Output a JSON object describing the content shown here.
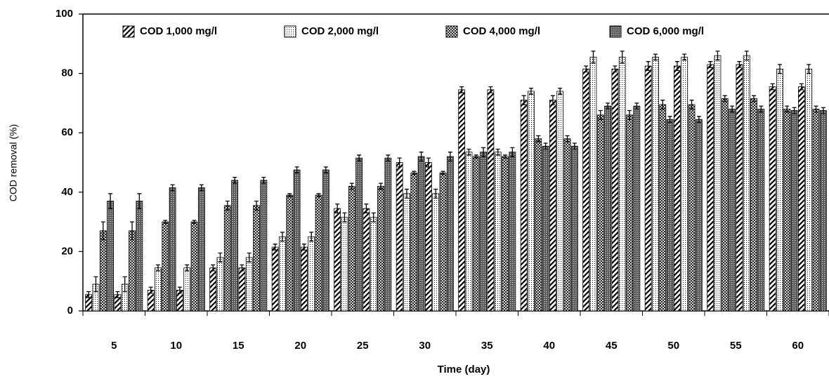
{
  "chart_data": {
    "type": "bar",
    "xlabel": "Time (day)",
    "ylabel": "COD removal  (%)",
    "categories": [
      "5",
      "10",
      "15",
      "20",
      "25",
      "30",
      "35",
      "40",
      "45",
      "50",
      "55",
      "60"
    ],
    "ylim": [
      0,
      100
    ],
    "yticks": [
      0,
      20,
      40,
      60,
      80,
      100
    ],
    "series": [
      {
        "name": "COD 1,000 mg/l",
        "hatch": "diagonal",
        "color": "#000000",
        "values": [
          5.5,
          7,
          14.5,
          21.5,
          34.5,
          50,
          74.5,
          71,
          81.5,
          82.5,
          83,
          75.5
        ],
        "errors": [
          1,
          1,
          1,
          1,
          1.5,
          1.5,
          1,
          1.5,
          1,
          1.5,
          1,
          1
        ]
      },
      {
        "name": "COD 2,000 mg/l",
        "hatch": "dots",
        "color": "#000000",
        "values": [
          9,
          14.5,
          18,
          25,
          31.5,
          39.5,
          53.5,
          74,
          85.5,
          85.5,
          86,
          81.5
        ],
        "errors": [
          2.5,
          1,
          1.5,
          1.5,
          1.5,
          1.5,
          1,
          1,
          2,
          1,
          1.5,
          1.5
        ]
      },
      {
        "name": "COD 4,000 mg/l",
        "hatch": "cross",
        "color": "#000000",
        "values": [
          27,
          30,
          35.5,
          39,
          42,
          46.5,
          52,
          58,
          66,
          69.5,
          71.5,
          68
        ],
        "errors": [
          3,
          0.5,
          1.5,
          0.5,
          1,
          0.5,
          0.5,
          1,
          1.5,
          1.5,
          1,
          1
        ]
      },
      {
        "name": "COD 6,000 mg/l",
        "hatch": "dense",
        "color": "#000000",
        "values": [
          37,
          41.5,
          44,
          47.5,
          51.5,
          52,
          53.5,
          55.5,
          69,
          64.5,
          68,
          67.5
        ],
        "errors": [
          2.5,
          1,
          1,
          1,
          1,
          1.5,
          1.5,
          1,
          1,
          1,
          1,
          1
        ]
      }
    ]
  }
}
